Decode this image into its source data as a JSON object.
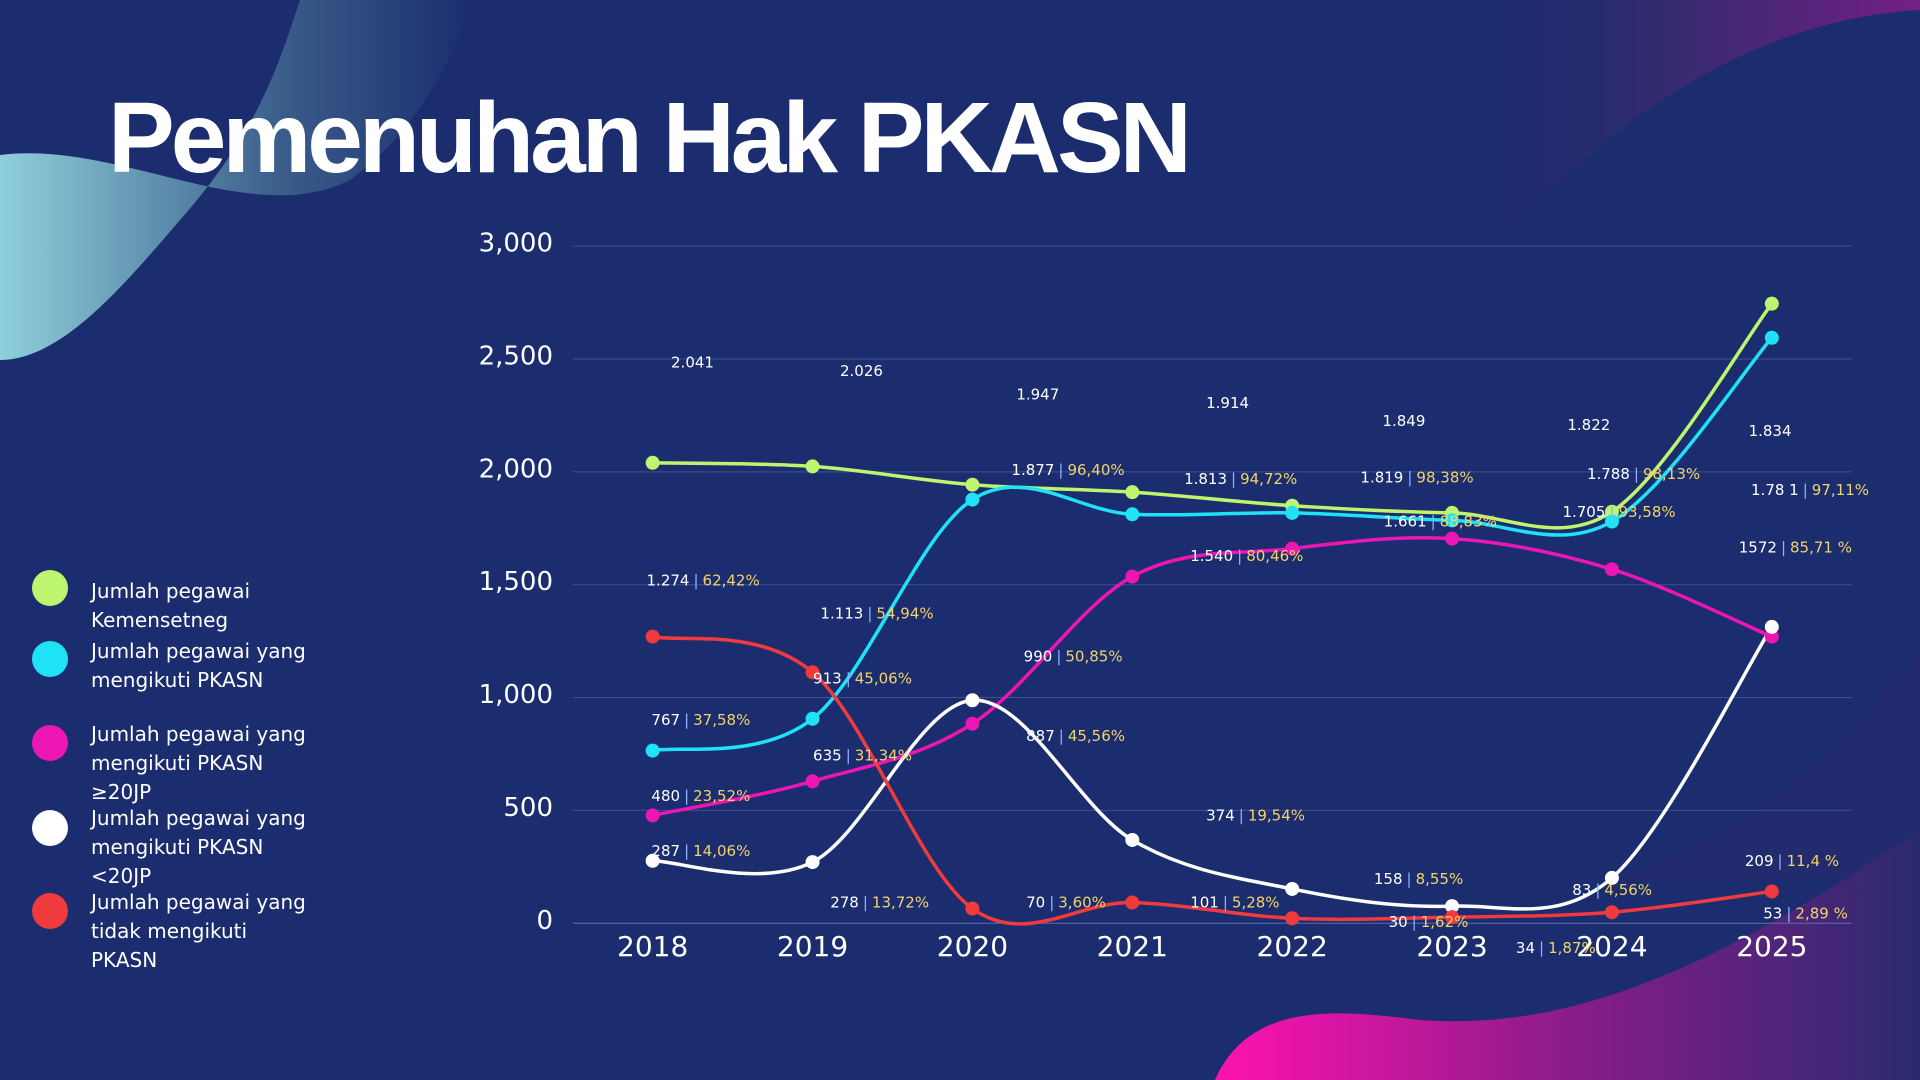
{
  "chart_data": {
    "type": "line",
    "title": "Pemenuhan Hak PKASN",
    "categories": [
      "2018",
      "2019",
      "2020",
      "2021",
      "2022",
      "2023",
      "2024",
      "2025"
    ],
    "ylim": [
      0,
      3000
    ],
    "yticks": [
      0,
      500,
      {
        "value": 1000,
        "label": "1,000"
      },
      {
        "value": 1500,
        "label": "1,500"
      },
      {
        "value": 2000,
        "label": "2,000"
      },
      {
        "value": 2500,
        "label": "2,500"
      },
      {
        "value": 3000,
        "label": "3,000"
      }
    ],
    "grid": true,
    "legend": "left",
    "series": [
      {
        "name": "Jumlah pegawai Kemensetneg",
        "color": "#bdf56e",
        "values": [
          2040,
          2024,
          1943,
          1910,
          1850,
          1818,
          1823,
          2745
        ]
      },
      {
        "name": "Jumlah pegawai yang mengikuti PKASN",
        "color": "#1fe2f7",
        "values": [
          765,
          906,
          1877,
          1812,
          1818,
          1785,
          1780,
          2594
        ]
      },
      {
        "name": "Jumlah pegawai yang mengikuti PKASN ≥20JP",
        "color": "#ec16b4",
        "values": [
          478,
          629,
          884,
          1536,
          1660,
          1704,
          1568,
          1270
        ]
      },
      {
        "name": "Jumlah pegawai yang mengikuti PKASN <20JP",
        "color": "#ffffff",
        "values": [
          277,
          271,
          988,
          369,
          152,
          76,
          201,
          1313
        ]
      },
      {
        "name": "Jumlah pegawai yang tidak mengikuti PKASN",
        "color": "#f03a3e",
        "values": [
          1270,
          1112,
          65,
          92,
          22,
          27,
          49,
          141
        ]
      }
    ],
    "separator": "|",
    "annotations": [
      {
        "count": "2.041"
      },
      {
        "count": "2.026"
      },
      {
        "count": "1.947"
      },
      {
        "count": "1.914"
      },
      {
        "count": "1.849"
      },
      {
        "count": "1.822"
      },
      {
        "count": "1.834"
      },
      {
        "count": "1.877",
        "percent": "96,40%"
      },
      {
        "count": "1.813",
        "percent": "94,72%"
      },
      {
        "count": "1.819",
        "percent": "98,38%"
      },
      {
        "count": "1.788",
        "percent": "98,13%"
      },
      {
        "count": "1.78 1",
        "percent": "97,11%"
      },
      {
        "count": "1.661",
        "percent": "88,83%"
      },
      {
        "count": "1.705",
        "percent": "93,58%"
      },
      {
        "count": "1.274",
        "percent": "62,42%"
      },
      {
        "count": "1.540",
        "percent": "80,46%"
      },
      {
        "count": "1572",
        "percent": "85,71 %"
      },
      {
        "count": "1.113",
        "percent": "54,94%"
      },
      {
        "count": "913",
        "percent": "45,06%"
      },
      {
        "count": "990",
        "percent": "50,85%"
      },
      {
        "count": "767",
        "percent": "37,58%"
      },
      {
        "count": "887",
        "percent": "45,56%"
      },
      {
        "count": "635",
        "percent": "31,34%"
      },
      {
        "count": "480",
        "percent": "23,52%"
      },
      {
        "count": "374",
        "percent": "19,54%"
      },
      {
        "count": "287",
        "percent": "14,06%"
      },
      {
        "count": "209",
        "percent": "11,4 %"
      },
      {
        "count": "278",
        "percent": "13,72%"
      },
      {
        "count": "70",
        "percent": "3,60%"
      },
      {
        "count": "101",
        "percent": "5,28%"
      },
      {
        "count": "158",
        "percent": "8,55%"
      },
      {
        "count": "83",
        "percent": "4,56%"
      },
      {
        "count": "53",
        "percent": "2,89 %"
      },
      {
        "count": "30",
        "percent": "1,62%"
      },
      {
        "count": "34",
        "percent": "1,87%"
      }
    ]
  }
}
